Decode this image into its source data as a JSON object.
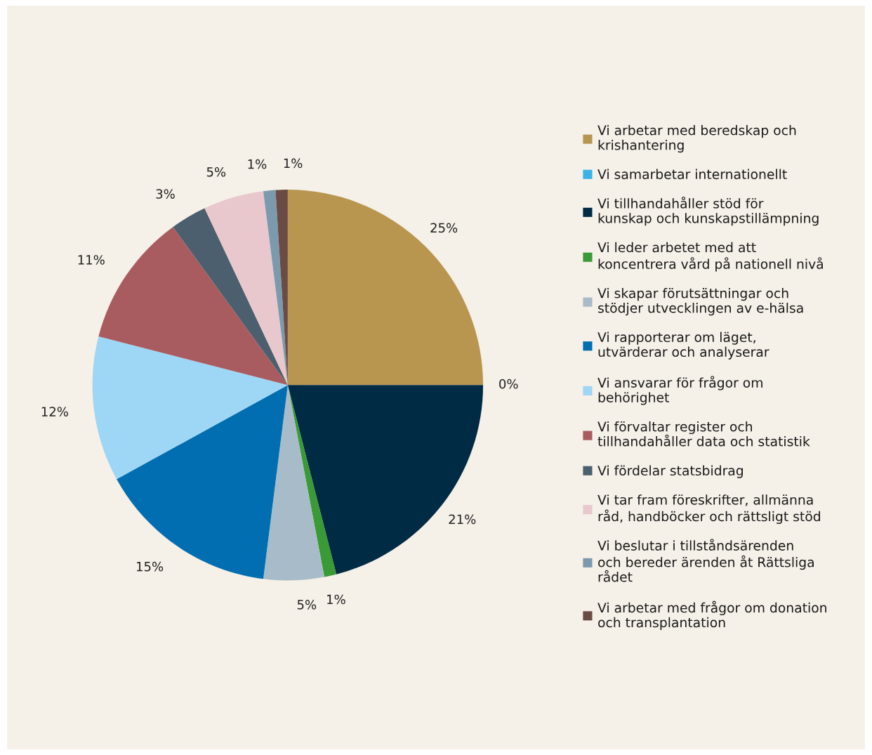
{
  "chart_data": {
    "type": "pie",
    "categories": [
      "Vi arbetar med beredskap och krishantering",
      "Vi samarbetar internationellt",
      "Vi tillhandahåller stöd för kunskap och kunskapstillämpning",
      "Vi leder arbetet med att koncentrera vård på nationell nivå",
      "Vi skapar förutsättningar och stödjer utvecklingen av e-hälsa",
      "Vi rapporterar om läget, utvärderar och analyserar",
      "Vi ansvarar för frågor om behörighet",
      "Vi förvaltar register och tillhandahåller data och statistik",
      "Vi fördelar statsbidrag",
      "Vi tar fram föreskrifter, allmänna råd, handböcker och rättsligt stöd",
      "Vi beslutar i tillståndsärenden och bereder ärenden åt Rättsliga rådet",
      "Vi arbetar med frågor om donation och transplantation"
    ],
    "values": [
      25,
      0,
      21,
      1,
      5,
      15,
      12,
      11,
      3,
      5,
      1,
      1
    ],
    "colors": [
      "#b8964f",
      "#3ab4e6",
      "#002b45",
      "#3a9a35",
      "#a7bcc8",
      "#006eb0",
      "#9ed6f5",
      "#a85c60",
      "#4c5f6e",
      "#e8c8cc",
      "#7c9aad",
      "#6a4c45"
    ],
    "value_labels": [
      "25%",
      "0%",
      "21%",
      "1%",
      "5%",
      "15%",
      "12%",
      "11%",
      "3%",
      "5%",
      "1%",
      "1%"
    ],
    "legend": "right"
  }
}
